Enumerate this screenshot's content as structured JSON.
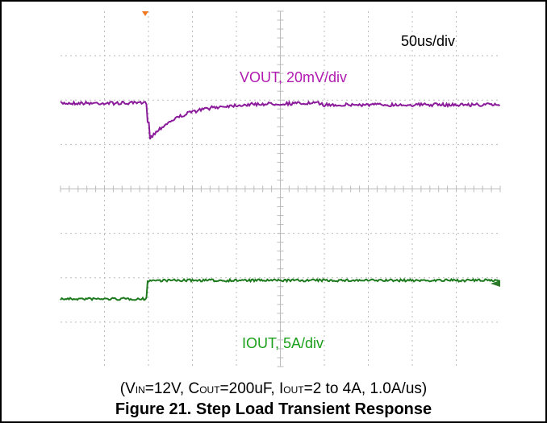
{
  "annotations": {
    "timebase": "50us/div",
    "vout": "VOUT, 20mV/div",
    "iout": "IOUT, 5A/div"
  },
  "caption": {
    "conditions": [
      "(V",
      "IN",
      "=12V, C",
      "OUT",
      "=200uF, I",
      "OUT",
      "=2 to 4A, 1.0A/us)"
    ],
    "title": "Figure 21. Step Load Transient Response"
  }
}
